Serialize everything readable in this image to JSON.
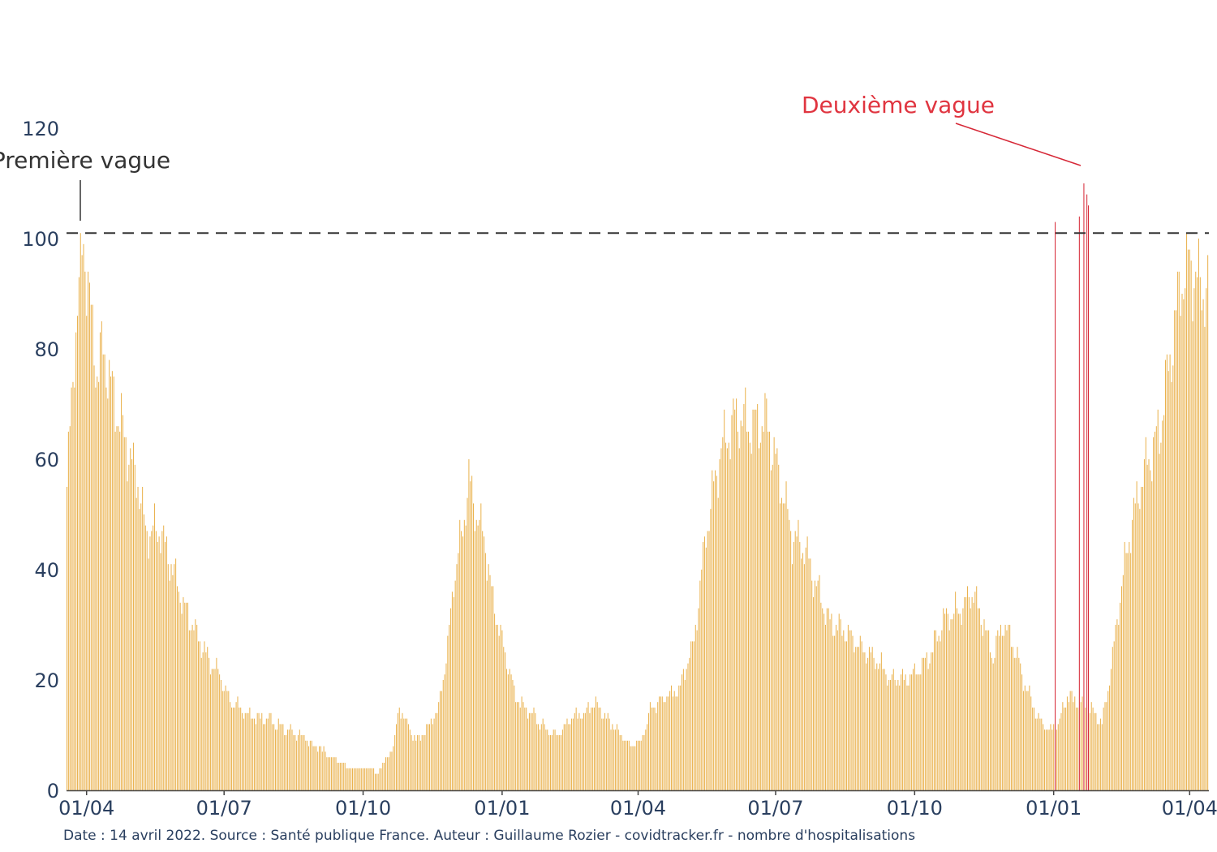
{
  "chart_data": {
    "type": "bar",
    "title": "",
    "xlabel": "",
    "ylabel": "",
    "start_date": "2020-03-19",
    "end_date": "2022-04-13",
    "ylim": [
      0,
      125
    ],
    "yticks": [
      0,
      20,
      40,
      60,
      80,
      100,
      120
    ],
    "xticks": [
      {
        "date": "2020-04-01",
        "label": "01/04"
      },
      {
        "date": "2020-07-01",
        "label": "01/07"
      },
      {
        "date": "2020-10-01",
        "label": "01/10"
      },
      {
        "date": "2021-01-01",
        "label": "01/01"
      },
      {
        "date": "2021-04-01",
        "label": "01/04"
      },
      {
        "date": "2021-07-01",
        "label": "01/07"
      },
      {
        "date": "2021-10-01",
        "label": "01/10"
      },
      {
        "date": "2022-01-01",
        "label": "01/01"
      },
      {
        "date": "2022-04-01",
        "label": "01/04"
      }
    ],
    "threshold": 101,
    "grid": false,
    "bar_color": "#eab24e",
    "highlight_color": "#d62837",
    "profile": [
      [
        "2020-03-19",
        55
      ],
      [
        "2020-03-24",
        80
      ],
      [
        "2020-03-30",
        101
      ],
      [
        "2020-04-03",
        88
      ],
      [
        "2020-04-08",
        76
      ],
      [
        "2020-04-12",
        80
      ],
      [
        "2020-04-20",
        70
      ],
      [
        "2020-04-28",
        62
      ],
      [
        "2020-05-05",
        56
      ],
      [
        "2020-05-10",
        47
      ],
      [
        "2020-05-20",
        47
      ],
      [
        "2020-05-28",
        40
      ],
      [
        "2020-06-05",
        33
      ],
      [
        "2020-06-12",
        29
      ],
      [
        "2020-06-20",
        24
      ],
      [
        "2020-06-28",
        21
      ],
      [
        "2020-07-05",
        16
      ],
      [
        "2020-07-12",
        15
      ],
      [
        "2020-07-20",
        13
      ],
      [
        "2020-07-31",
        13
      ],
      [
        "2020-08-10",
        11
      ],
      [
        "2020-08-20",
        10
      ],
      [
        "2020-08-31",
        8
      ],
      [
        "2020-09-10",
        6
      ],
      [
        "2020-09-25",
        4
      ],
      [
        "2020-10-02",
        4
      ],
      [
        "2020-10-06",
        4
      ],
      [
        "2020-10-10",
        3
      ],
      [
        "2020-10-17",
        6
      ],
      [
        "2020-10-21",
        8
      ],
      [
        "2020-10-25",
        15
      ],
      [
        "2020-10-30",
        12
      ],
      [
        "2020-11-05",
        9
      ],
      [
        "2020-11-12",
        11
      ],
      [
        "2020-11-20",
        15
      ],
      [
        "2020-11-26",
        26
      ],
      [
        "2020-11-30",
        38
      ],
      [
        "2020-12-05",
        46
      ],
      [
        "2020-12-10",
        56
      ],
      [
        "2020-12-15",
        50
      ],
      [
        "2020-12-20",
        46
      ],
      [
        "2020-12-26",
        34
      ],
      [
        "2021-01-02",
        26
      ],
      [
        "2021-01-10",
        17
      ],
      [
        "2021-01-20",
        14
      ],
      [
        "2021-01-30",
        11
      ],
      [
        "2021-02-08",
        10
      ],
      [
        "2021-02-15",
        13
      ],
      [
        "2021-02-25",
        14
      ],
      [
        "2021-03-03",
        16
      ],
      [
        "2021-03-12",
        13
      ],
      [
        "2021-03-20",
        10
      ],
      [
        "2021-03-28",
        8
      ],
      [
        "2021-04-03",
        9
      ],
      [
        "2021-04-10",
        15
      ],
      [
        "2021-04-20",
        17
      ],
      [
        "2021-04-28",
        18
      ],
      [
        "2021-05-08",
        27
      ],
      [
        "2021-05-16",
        47
      ],
      [
        "2021-05-26",
        62
      ],
      [
        "2021-06-05",
        68
      ],
      [
        "2021-06-15",
        66
      ],
      [
        "2021-06-25",
        67
      ],
      [
        "2021-07-05",
        55
      ],
      [
        "2021-07-12",
        46
      ],
      [
        "2021-07-20",
        44
      ],
      [
        "2021-07-28",
        37
      ],
      [
        "2021-08-05",
        31
      ],
      [
        "2021-08-15",
        29
      ],
      [
        "2021-08-25",
        26
      ],
      [
        "2021-09-05",
        24
      ],
      [
        "2021-09-15",
        20
      ],
      [
        "2021-09-25",
        20
      ],
      [
        "2021-10-05",
        22
      ],
      [
        "2021-10-12",
        25
      ],
      [
        "2021-10-20",
        31
      ],
      [
        "2021-11-01",
        33
      ],
      [
        "2021-11-08",
        36
      ],
      [
        "2021-11-15",
        31
      ],
      [
        "2021-11-22",
        24
      ],
      [
        "2021-11-28",
        30
      ],
      [
        "2021-12-05",
        27
      ],
      [
        "2021-12-12",
        20
      ],
      [
        "2021-12-20",
        14
      ],
      [
        "2021-12-28",
        11
      ],
      [
        "2022-01-04",
        12
      ],
      [
        "2022-01-10",
        17
      ],
      [
        "2022-01-18",
        16
      ],
      [
        "2022-01-25",
        15
      ],
      [
        "2022-02-02",
        12
      ],
      [
        "2022-02-08",
        22
      ],
      [
        "2022-02-14",
        35
      ],
      [
        "2022-02-20",
        46
      ],
      [
        "2022-02-27",
        55
      ],
      [
        "2022-03-05",
        60
      ],
      [
        "2022-03-12",
        65
      ],
      [
        "2022-03-19",
        78
      ],
      [
        "2022-03-26",
        92
      ],
      [
        "2022-04-01",
        96
      ],
      [
        "2022-04-06",
        92
      ],
      [
        "2022-04-13",
        90
      ]
    ],
    "highlights": [
      [
        "2022-01-02",
        103
      ],
      [
        "2022-01-18",
        104
      ],
      [
        "2022-01-21",
        110
      ],
      [
        "2022-01-23",
        108
      ],
      [
        "2022-01-24",
        106
      ]
    ]
  },
  "annotations": {
    "first_wave": "Première vague",
    "second_wave": "Deuxième vague"
  },
  "source": "Date : 14 avril 2022. Source : Santé publique France. Auteur : Guillaume Rozier - covidtracker.fr - nombre d'hospitalisations"
}
